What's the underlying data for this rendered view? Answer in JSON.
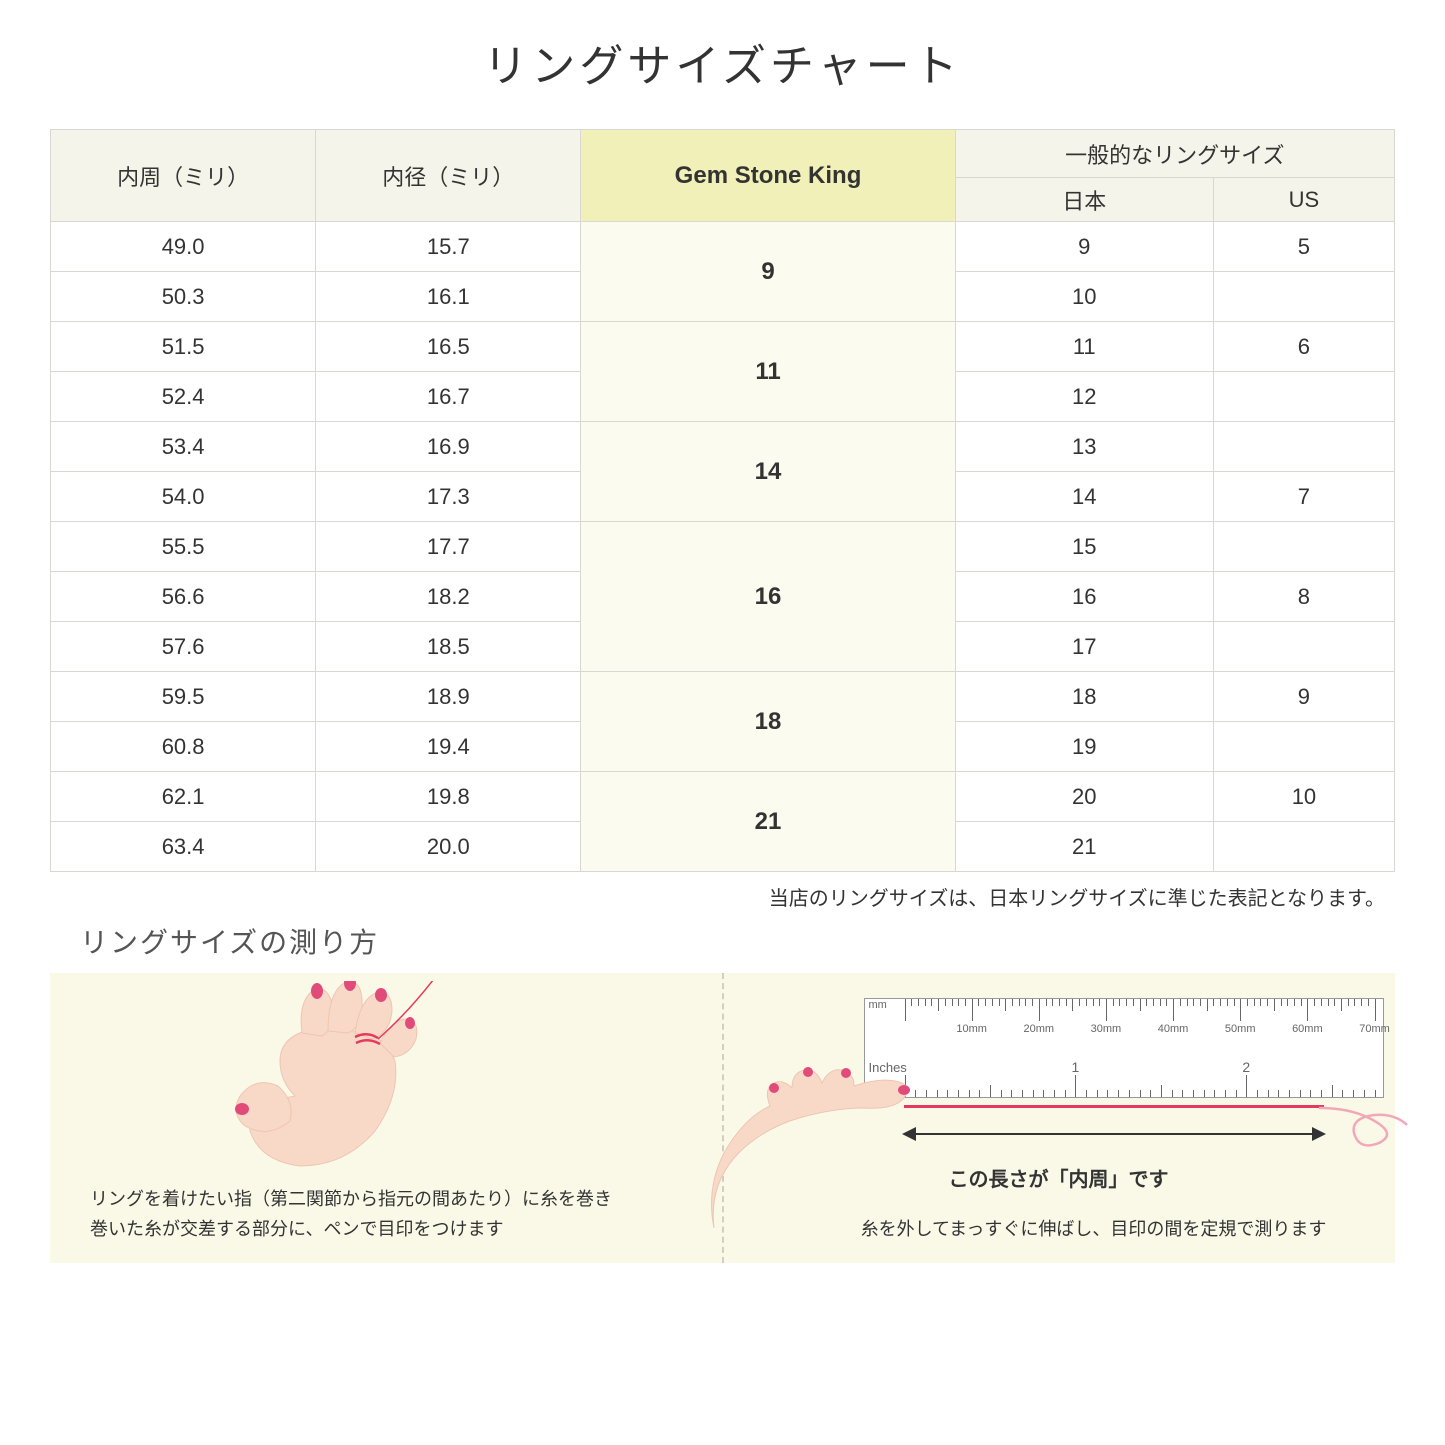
{
  "title": "リングサイズチャート",
  "headers": {
    "circumference": "内周（ミリ）",
    "diameter": "内径（ミリ）",
    "gsk": "Gem Stone King",
    "general": "一般的なリングサイズ",
    "japan": "日本",
    "us": "US"
  },
  "rows": [
    {
      "circ": "49.0",
      "dia": "15.7",
      "jp": "9",
      "us": "5"
    },
    {
      "circ": "50.3",
      "dia": "16.1",
      "jp": "10",
      "us": ""
    },
    {
      "circ": "51.5",
      "dia": "16.5",
      "jp": "11",
      "us": "6"
    },
    {
      "circ": "52.4",
      "dia": "16.7",
      "jp": "12",
      "us": ""
    },
    {
      "circ": "53.4",
      "dia": "16.9",
      "jp": "13",
      "us": ""
    },
    {
      "circ": "54.0",
      "dia": "17.3",
      "jp": "14",
      "us": "7"
    },
    {
      "circ": "55.5",
      "dia": "17.7",
      "jp": "15",
      "us": ""
    },
    {
      "circ": "56.6",
      "dia": "18.2",
      "jp": "16",
      "us": "8"
    },
    {
      "circ": "57.6",
      "dia": "18.5",
      "jp": "17",
      "us": ""
    },
    {
      "circ": "59.5",
      "dia": "18.9",
      "jp": "18",
      "us": "9"
    },
    {
      "circ": "60.8",
      "dia": "19.4",
      "jp": "19",
      "us": ""
    },
    {
      "circ": "62.1",
      "dia": "19.8",
      "jp": "20",
      "us": "10"
    },
    {
      "circ": "63.4",
      "dia": "20.0",
      "jp": "21",
      "us": ""
    }
  ],
  "gsk_groups": [
    {
      "label": "9",
      "span": 2
    },
    {
      "label": "11",
      "span": 2
    },
    {
      "label": "14",
      "span": 2
    },
    {
      "label": "16",
      "span": 3
    },
    {
      "label": "18",
      "span": 2
    },
    {
      "label": "21",
      "span": 2
    }
  ],
  "note": "当店のリングサイズは、日本リングサイズに準じた表記となります。",
  "measure_title": "リングサイズの測り方",
  "left_instruction": "リングを着けたい指（第二関節から指元の間あたり）に糸を巻き\n巻いた糸が交差する部分に、ペンで目印をつけます",
  "right_instruction": "糸を外してまっすぐに伸ばし、目印の間を定規で測ります",
  "ruler_label": "この長さが「内周」です",
  "ruler": {
    "mm_label": "mm",
    "in_label": "Inches",
    "mm_marks": [
      "10mm",
      "20mm",
      "30mm",
      "40mm",
      "50mm",
      "60mm",
      "70mm"
    ],
    "in_marks": [
      "1",
      "2"
    ]
  },
  "colors": {
    "header_bg": "#f5f4ea",
    "gsk_header_bg": "#f0f0b8",
    "gsk_cell_bg": "#fbfbef",
    "border": "#d8d8d0",
    "panel_bg": "#faf9e8",
    "thread": "#e63960",
    "skin": "#f8d9c8",
    "skin_dark": "#eec5b0",
    "nail": "#e14b7a"
  }
}
